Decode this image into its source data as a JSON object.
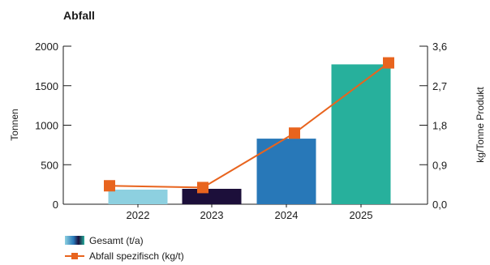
{
  "chart_data": {
    "type": "bar",
    "title": "Abfall",
    "categories": [
      "2022",
      "2023",
      "2024",
      "2025"
    ],
    "series": [
      {
        "name": "Gesamt (t/a)",
        "type": "bar",
        "axis": "left",
        "values": [
          185,
          195,
          830,
          1770
        ],
        "colors": [
          "#8dd0e0",
          "#1c0f3a",
          "#2878b8",
          "#27b09c"
        ]
      },
      {
        "name": "Abfall spezifisch (kg/t)",
        "type": "line",
        "axis": "right",
        "values": [
          0.42,
          0.38,
          1.62,
          3.22
        ],
        "color": "#e8641e"
      }
    ],
    "ylabel": "Tonnen",
    "ylim": [
      0,
      2000
    ],
    "yticks": [
      "0",
      "500",
      "1000",
      "1500",
      "2000"
    ],
    "y2label": "kg/Tonne Produkt",
    "y2lim": [
      0,
      3.6
    ],
    "y2ticks": [
      "0,0",
      "0,9",
      "1,8",
      "2,7",
      "3,6"
    ],
    "grid": false,
    "legend": "bottom-left"
  }
}
